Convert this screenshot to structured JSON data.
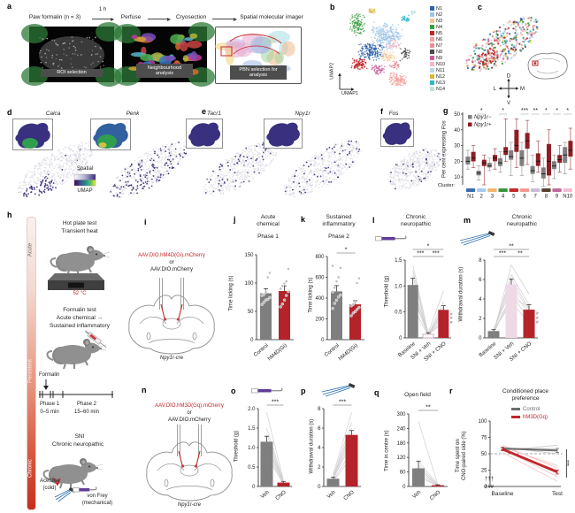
{
  "a": {
    "label": "a",
    "steps": [
      "Paw formalin (n = 3)",
      "Perfuse",
      "Cryosection",
      "Spatial molecular imager"
    ],
    "arrow1_label": "1 h",
    "images": [
      "ROI selection",
      "Neighbourhood analysis",
      "PBN selection for analysis"
    ]
  },
  "b": {
    "label": "b",
    "xlabel": "UMAP1",
    "ylabel": "UMAP2",
    "legend": [
      "N1",
      "N2",
      "N3",
      "N4",
      "N5",
      "N6",
      "N7",
      "N8",
      "N9",
      "N10",
      "N11",
      "N12",
      "N13",
      "N14"
    ],
    "legend_colors": [
      "#2e64a8",
      "#9dc3e6",
      "#f5c894",
      "#3a9e42",
      "#c62428",
      "#f4a09b",
      "#e88f9a",
      "#4a4a4a",
      "#c95f9b",
      "#f4b8c8",
      "#bcd6ea",
      "#d8b940",
      "#2eb6c9",
      "#c2dede"
    ]
  },
  "c": {
    "label": "c",
    "compass": {
      "up": "D",
      "down": "V",
      "left": "L",
      "right": "M"
    }
  },
  "d": {
    "label": "d",
    "genes": [
      "Calca",
      "Penk"
    ],
    "colorbar_top": "Spatial",
    "colorbar_bottom": "UMAP"
  },
  "e": {
    "label": "e",
    "genes": [
      "Tacr1",
      "Npy1r"
    ]
  },
  "f": {
    "label": "f",
    "genes": [
      "Fos"
    ]
  },
  "g": {
    "label": "g",
    "ylabel_prefix": "Per cent expressing ",
    "ylabel_gene": "Fos",
    "cluster_label": "Cluster:",
    "legend": [
      {
        "label": "Npy1r−",
        "color": "#7f7f7f"
      },
      {
        "label": "Npy1r+",
        "color": "#8f1d24"
      }
    ]
  },
  "h": {
    "label": "h",
    "axis_labels": [
      "Acute",
      "Persistent",
      "Chronic"
    ],
    "hot_plate": [
      "Hot plate test",
      "Transient heat"
    ],
    "temp": "52 °C",
    "formalin_test": [
      "Formalin test",
      "Acute chemical →",
      "Sustained inflammatory"
    ],
    "formalin": "Formalin",
    "phase1": [
      "Phase 1",
      "0–5 min"
    ],
    "phase2": [
      "Phase 2",
      "15–60 min"
    ],
    "sni": [
      "SNI",
      "Chronic neuropathic"
    ],
    "acetone": [
      "Acetone",
      "(cold)"
    ],
    "vonfrey": [
      "von Frey",
      "(mechanical)"
    ]
  },
  "i": {
    "label": "i",
    "virus_red": "AAV.DIO.hM4D(Gi).mCherry",
    "or": "or",
    "virus_gray": "AAV.DIO.mCherry",
    "mouse_line": "Npy1r-cre"
  },
  "n": {
    "label": "n",
    "virus_red": "AAV.DIO.hM3D(Gq).mCherry",
    "or": "or",
    "virus_gray": "AAV.DIO.mCherry",
    "mouse_line": "Npy1r-cre"
  },
  "j": {
    "label": "j",
    "title": [
      "Acute",
      "chemical"
    ],
    "subtitle": "Phase 1",
    "ylabel": "Time licking (s)"
  },
  "k": {
    "label": "k",
    "title": [
      "Sustained",
      "inflammatory"
    ],
    "subtitle": "Phase 2",
    "ylabel": "Time licking (s)"
  },
  "l": {
    "label": "l",
    "title": [
      "Chronic",
      "neuropathic"
    ],
    "ylabel": "Threshold (g)"
  },
  "m": {
    "label": "m",
    "title": [
      "Chronic",
      "neuropathic"
    ],
    "ylabel": "Withdrawal duration (s)"
  },
  "o": {
    "label": "o",
    "ylabel": "Threshold (g)"
  },
  "p": {
    "label": "p",
    "ylabel": "Withdrawal duration (s)"
  },
  "q": {
    "label": "q",
    "title": "Open field",
    "ylabel": "Time in centre (s)"
  },
  "r": {
    "label": "r",
    "title": [
      "Conditioned place",
      "preference"
    ],
    "ylabel": [
      "Time spent on",
      "CNO-paired side (%)"
    ],
    "legend": [
      {
        "label": "Control",
        "color": "#6e6e6e"
      },
      {
        "label": "hM3D(Gq)",
        "color": "#c1272d"
      }
    ],
    "daggers": "†††",
    "hashes": "###",
    "sig": "***",
    "xticklabels": [
      "Baseline",
      "Test"
    ]
  },
  "chart_data": [
    {
      "id": "g",
      "type": "box",
      "ylim": [
        5,
        50
      ],
      "yticks": [
        "10",
        "20",
        "30",
        "40",
        "50"
      ],
      "categories": [
        "N1",
        "2",
        "3",
        "4",
        "5",
        "6",
        "7",
        "8",
        "9",
        "N10"
      ],
      "sig": [
        "",
        "*",
        "",
        "*",
        "",
        "***",
        "**",
        "*",
        "*",
        "*"
      ],
      "cluster_colors": [
        "#3a6fb0",
        "#a9cbe8",
        "#f0b670",
        "#39953f",
        "#c32a2a",
        "#f49b94",
        "#c9bcd9",
        "#57402f",
        "#c06a9e",
        "#f3bcd0"
      ],
      "series": [
        {
          "name": "Npy1r−",
          "color": "#7f7f7f",
          "boxes": [
            [
              15,
              18,
              20,
              23,
              27
            ],
            [
              8,
              11,
              12.5,
              14,
              17
            ],
            [
              14,
              16,
              17,
              19,
              22
            ],
            [
              13,
              17,
              19,
              22,
              26
            ],
            [
              11,
              21,
              23,
              27,
              32
            ],
            [
              11,
              17,
              22,
              27,
              32
            ],
            [
              7,
              12,
              14,
              17,
              24
            ],
            [
              4,
              9,
              12,
              16,
              22
            ],
            [
              9,
              15,
              17,
              20,
              24
            ],
            [
              12,
              19,
              24,
              29,
              32
            ]
          ]
        },
        {
          "name": "Npy1r+",
          "color": "#8f1d24",
          "boxes": [
            [
              16,
              20,
              22,
              26,
              30
            ],
            [
              5,
              17,
              19,
              21,
              24
            ],
            [
              15,
              20,
              22,
              24,
              28
            ],
            [
              20,
              24,
              26,
              29,
              47
            ],
            [
              16,
              26,
              30,
              40,
              47
            ],
            [
              18,
              28,
              33,
              38,
              46
            ],
            [
              13,
              17,
              20,
              25,
              33
            ],
            [
              5,
              11,
              20,
              31,
              40
            ],
            [
              13,
              19,
              21,
              24,
              30
            ],
            [
              15,
              23,
              27,
              33,
              41
            ]
          ]
        }
      ]
    },
    {
      "id": "j",
      "type": "bar",
      "ylim": [
        0,
        150
      ],
      "yticks": [
        "0",
        "50",
        "100",
        "150"
      ],
      "categories": [
        "Control",
        "hM4D(Gi)"
      ],
      "values": [
        82,
        86
      ],
      "errors": [
        8,
        9
      ],
      "colors": [
        "#7f7f7f",
        "#b4232a"
      ],
      "dots": [
        [
          62,
          66,
          70,
          71,
          74,
          78,
          80,
          84,
          110,
          118
        ],
        [
          58,
          63,
          70,
          78,
          85,
          90,
          95,
          99,
          103,
          125
        ]
      ]
    },
    {
      "id": "k",
      "type": "bar",
      "ylim": [
        0,
        800
      ],
      "yticks": [
        "0",
        "200",
        "400",
        "600",
        "800"
      ],
      "categories": [
        "Control",
        "hM4D(Gi)"
      ],
      "values": [
        465,
        340
      ],
      "errors": [
        55,
        35
      ],
      "colors": [
        "#7f7f7f",
        "#b4232a"
      ],
      "sig": [
        {
          "from": 0,
          "to": 1,
          "label": "*"
        }
      ],
      "dots": [
        [
          300,
          350,
          380,
          410,
          430,
          460,
          500,
          560,
          600,
          690,
          710
        ],
        [
          230,
          255,
          270,
          290,
          310,
          325,
          340,
          360,
          545,
          590
        ]
      ]
    },
    {
      "id": "l",
      "type": "bar",
      "ylim": [
        0,
        1.5
      ],
      "yticks": [
        "0",
        "0.5",
        "1.0",
        "1.5"
      ],
      "categories": [
        "Baseline",
        "SNI + Veh",
        "SNI + CNO"
      ],
      "values": [
        1.02,
        0.07,
        0.54
      ],
      "errors": [
        0.13,
        0.03,
        0.08
      ],
      "colors": [
        "#7f7f7f",
        "#ffffff",
        "#b4232a"
      ],
      "borders": [
        null,
        "#c9a8bd",
        null
      ],
      "sig": [
        {
          "from": 0,
          "to": 2,
          "label": "*"
        },
        {
          "from": 0,
          "to": 1,
          "label": "***"
        },
        {
          "from": 1,
          "to": 2,
          "label": "***"
        }
      ],
      "pairs": [
        [
          1.4,
          0.1,
          0.9
        ],
        [
          1.3,
          0.05,
          0.7
        ],
        [
          1.0,
          0.07,
          0.55
        ],
        [
          1.0,
          0.05,
          0.5
        ],
        [
          0.9,
          0.03,
          0.45
        ],
        [
          0.8,
          0.06,
          0.3
        ],
        [
          1.2,
          0.04,
          0.6
        ],
        [
          0.6,
          0.05,
          0.35
        ]
      ],
      "hash": "###",
      "hash_at": 2
    },
    {
      "id": "m",
      "type": "bar",
      "ylim": [
        0,
        8
      ],
      "yticks": [
        "0",
        "2",
        "4",
        "6",
        "8"
      ],
      "categories": [
        "Baseline",
        "SNI + Veh",
        "SNI + CNO"
      ],
      "values": [
        0.7,
        5.5,
        2.9
      ],
      "errors": [
        0.15,
        0.55,
        0.5
      ],
      "colors": [
        "#7f7f7f",
        "#eed9e7",
        "#b4232a"
      ],
      "sig": [
        {
          "from": 0,
          "to": 2,
          "label": "**"
        },
        {
          "from": 0,
          "to": 1,
          "label": "***"
        },
        {
          "from": 1,
          "to": 2,
          "label": "**"
        }
      ],
      "pairs": [
        [
          0.5,
          7.5,
          4.5
        ],
        [
          0.6,
          6.5,
          3.4
        ],
        [
          0.8,
          6.1,
          3.0
        ],
        [
          0.7,
          5.6,
          2.8
        ],
        [
          0.9,
          5.0,
          2.5
        ],
        [
          0.6,
          4.4,
          2.0
        ],
        [
          0.8,
          3.6,
          1.6
        ],
        [
          0.5,
          4.1,
          3.2
        ]
      ],
      "hash": "###",
      "hash_at": 2
    },
    {
      "id": "o",
      "type": "bar",
      "ylim": [
        0,
        2
      ],
      "yticks": [
        "0",
        "0.5",
        "1.0",
        "1.5",
        "2.0"
      ],
      "categories": [
        "Veh",
        "CNO"
      ],
      "values": [
        1.15,
        0.1
      ],
      "errors": [
        0.14,
        0.03
      ],
      "colors": [
        "#7f7f7f",
        "#b4232a"
      ],
      "sig": [
        {
          "from": 0,
          "to": 1,
          "label": "***"
        }
      ],
      "pairs": [
        [
          1.9,
          0.15
        ],
        [
          1.5,
          0.12
        ],
        [
          1.35,
          0.1
        ],
        [
          1.2,
          0.1
        ],
        [
          1.1,
          0.08
        ],
        [
          1.0,
          0.1
        ],
        [
          0.9,
          0.06
        ],
        [
          0.8,
          0.05
        ]
      ]
    },
    {
      "id": "p",
      "type": "bar",
      "ylim": [
        0,
        8
      ],
      "yticks": [
        "0",
        "2",
        "4",
        "6",
        "8"
      ],
      "categories": [
        "Veh",
        "CNO"
      ],
      "values": [
        0.8,
        5.3
      ],
      "errors": [
        0.15,
        0.45
      ],
      "colors": [
        "#7f7f7f",
        "#b4232a"
      ],
      "sig": [
        {
          "from": 0,
          "to": 1,
          "label": "***"
        }
      ],
      "pairs": [
        [
          1.2,
          7.6
        ],
        [
          1.0,
          6.6
        ],
        [
          0.9,
          6.0
        ],
        [
          0.8,
          5.5
        ],
        [
          0.7,
          5.0
        ],
        [
          0.8,
          4.4
        ],
        [
          0.6,
          3.6
        ],
        [
          0.5,
          3.0
        ]
      ]
    },
    {
      "id": "q",
      "type": "bar",
      "ylim": [
        0,
        300
      ],
      "yticks": [
        "0",
        "60",
        "120",
        "180",
        "240",
        "300"
      ],
      "categories": [
        "Veh",
        "CNO"
      ],
      "values": [
        75,
        5
      ],
      "errors": [
        30,
        2
      ],
      "colors": [
        "#7f7f7f",
        "#b4232a"
      ],
      "sig": [
        {
          "from": 0,
          "to": 1,
          "label": "**"
        }
      ],
      "pairs": [
        [
          270,
          6
        ],
        [
          105,
          8
        ],
        [
          90,
          3
        ],
        [
          78,
          2
        ],
        [
          62,
          5
        ],
        [
          50,
          2
        ],
        [
          40,
          3
        ]
      ]
    },
    {
      "id": "r",
      "type": "line",
      "ylim": [
        0,
        100
      ],
      "yticks": [
        "0",
        "25",
        "50",
        "75",
        "100"
      ],
      "x": [
        "Baseline",
        "Test"
      ],
      "dashed_y": 50,
      "series": [
        {
          "name": "Control",
          "color": "#6e6e6e",
          "width": 2.2,
          "values": [
            58,
            55
          ],
          "err": [
            2,
            3
          ]
        },
        {
          "name": "hM3D(Gq)",
          "color": "#c1272d",
          "width": 2.8,
          "values": [
            57,
            22
          ],
          "err": [
            2.5,
            3
          ]
        }
      ],
      "thin": [
        {
          "color": "#bdbdbd",
          "values": [
            55,
            63
          ]
        },
        {
          "color": "#bdbdbd",
          "values": [
            60,
            50
          ]
        },
        {
          "color": "#bdbdbd",
          "values": [
            57,
            58
          ]
        },
        {
          "color": "#f0b9ba",
          "values": [
            60,
            32
          ]
        },
        {
          "color": "#f0b9ba",
          "values": [
            55,
            25
          ]
        },
        {
          "color": "#f0b9ba",
          "values": [
            57,
            15
          ]
        },
        {
          "color": "#f0b9ba",
          "values": [
            63,
            28
          ]
        },
        {
          "color": "#f0b9ba",
          "values": [
            52,
            8
          ]
        }
      ]
    }
  ]
}
